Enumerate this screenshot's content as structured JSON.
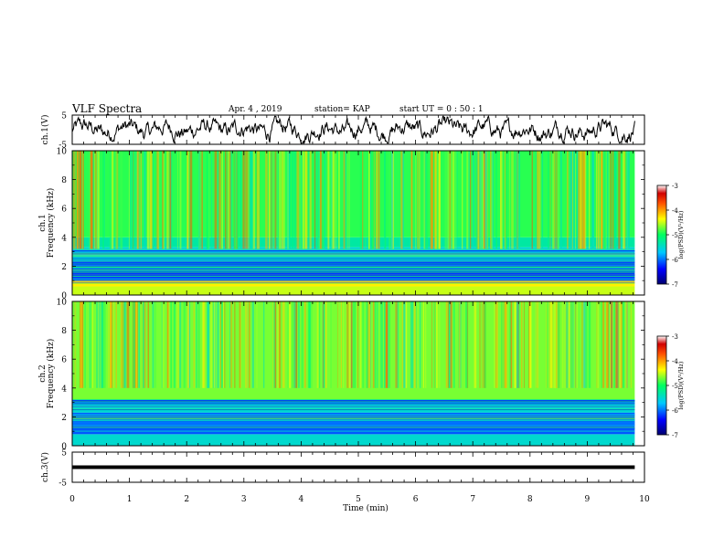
{
  "header": {
    "title": "VLF Spectra",
    "date": "Apr. 4 , 2019",
    "station": "station= KAP",
    "start": "start UT = 0 : 50 : 1"
  },
  "colorbar": {
    "label": "log(PSD)(V²/Hz)",
    "ticks": [
      "-3",
      "-4",
      "-5",
      "-6",
      "-7"
    ]
  },
  "chart_data": [
    {
      "type": "line",
      "name": "ch1-waveform",
      "ylabel": "ch.1(V)",
      "ylim": [
        -5,
        5
      ],
      "yticks": [
        "5",
        "-5"
      ],
      "xlim": [
        0,
        10
      ],
      "note_values": "approximate oscillating waveform, roughly between -4 and 4 V",
      "y_range_observed": [
        -4.5,
        4.5
      ]
    },
    {
      "type": "heatmap",
      "name": "ch1-spectrogram",
      "ylabel": "ch.1 Frequency (kHz)",
      "ylim": [
        0,
        10
      ],
      "yticks": [
        "0",
        "2",
        "4",
        "6",
        "8",
        "10"
      ],
      "xlim": [
        0,
        10
      ],
      "zlabel": "log(PSD)(V²/Hz)",
      "zlim": [
        -7,
        -3
      ],
      "bands": [
        {
          "freq_khz": [
            0,
            0.6
          ],
          "level": -4.5
        },
        {
          "freq_khz": [
            0.6,
            1.0
          ],
          "level": -4.3
        },
        {
          "freq_khz": [
            1.0,
            2.4
          ],
          "level": -6.2
        },
        {
          "freq_khz": [
            2.4,
            3.3
          ],
          "level": -5.6
        },
        {
          "freq_khz": [
            3.3,
            4.0
          ],
          "level": -5.3
        },
        {
          "freq_khz": [
            4.0,
            10.0
          ],
          "level": -4.9
        }
      ]
    },
    {
      "type": "heatmap",
      "name": "ch2-spectrogram",
      "ylabel": "ch.2 Frequency (kHz)",
      "ylim": [
        0,
        10
      ],
      "yticks": [
        "0",
        "2",
        "4",
        "6",
        "8",
        "10"
      ],
      "xlim": [
        0,
        10
      ],
      "zlabel": "log(PSD)(V²/Hz)",
      "zlim": [
        -7,
        -3
      ],
      "bands": [
        {
          "freq_khz": [
            0,
            0.8
          ],
          "level": -5.5
        },
        {
          "freq_khz": [
            0.8,
            2.3
          ],
          "level": -6.1
        },
        {
          "freq_khz": [
            2.3,
            3.2
          ],
          "level": -5.5
        },
        {
          "freq_khz": [
            3.2,
            10.0
          ],
          "level": -4.7
        }
      ]
    },
    {
      "type": "line",
      "name": "ch3-waveform",
      "ylabel": "ch.3(V)",
      "ylim": [
        -5,
        5
      ],
      "yticks": [
        "5",
        "-5"
      ],
      "xlim": [
        0,
        10
      ],
      "values_constant": 0
    }
  ],
  "xaxis": {
    "label": "Time (min)",
    "ticks": [
      "0",
      "1",
      "2",
      "3",
      "4",
      "5",
      "6",
      "7",
      "8",
      "9",
      "10"
    ],
    "data_end": 9.83
  }
}
